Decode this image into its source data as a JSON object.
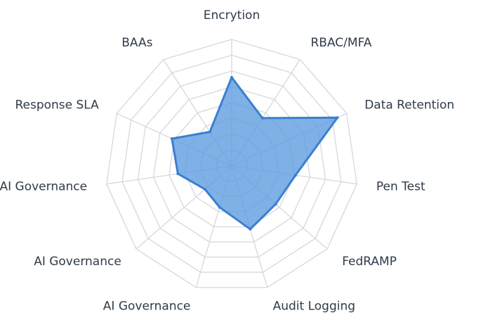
{
  "chart_data": {
    "type": "radar",
    "title": "",
    "categories": [
      "Encrytion",
      "RBAC/MFA",
      "Data Retention",
      "Pen Test",
      "FedRAMP",
      "Audit Logging",
      "AI Governance",
      "AI Governance",
      "AI Governance",
      "Response SLA",
      "BAAs"
    ],
    "series": [
      {
        "values": [
          70,
          45,
          92,
          51,
          46,
          52,
          34,
          28,
          43,
          52,
          32
        ]
      }
    ],
    "rlim": [
      0,
      100
    ],
    "grid": true,
    "legend": "none",
    "colors": {
      "fill": "#5b9be0",
      "stroke": "#3a7fd0",
      "grid": "#d8dadd",
      "label": "#2f3b4a"
    }
  }
}
